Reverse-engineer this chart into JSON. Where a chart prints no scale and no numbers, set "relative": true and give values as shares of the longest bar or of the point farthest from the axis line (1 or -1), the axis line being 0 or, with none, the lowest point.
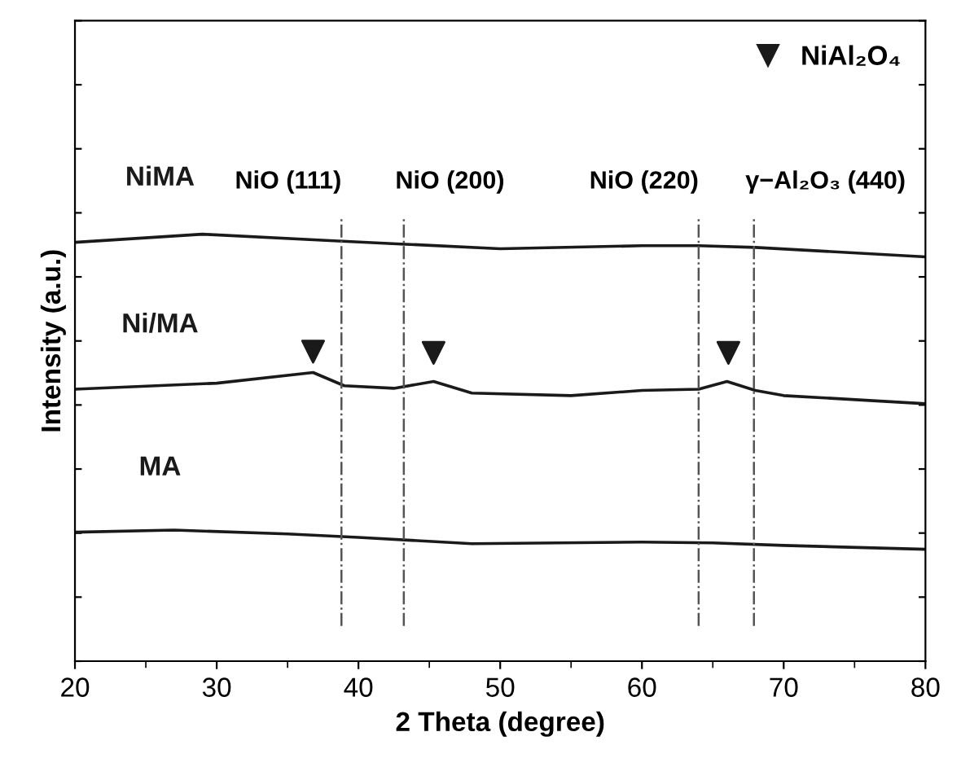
{
  "chart_data": {
    "type": "line",
    "xlabel": "2 Theta (degree)",
    "ylabel": "Intensity (a.u.)",
    "relative": true,
    "tick_labels": "x",
    "xlim": [
      20,
      80
    ],
    "xticks": [
      20,
      30,
      40,
      50,
      60,
      70,
      80
    ],
    "series": [
      {
        "name": "NiMA",
        "color": "#1a1a1a",
        "x": [
          20,
          29,
          38,
          43,
          50,
          60,
          64,
          68,
          80
        ],
        "values": [
          0.981,
          1.0,
          0.985,
          0.977,
          0.966,
          0.973,
          0.973,
          0.969,
          0.947
        ]
      },
      {
        "name": "Ni/MA",
        "color": "#1a1a1a",
        "x": [
          20,
          30,
          36.8,
          39,
          42.5,
          45.3,
          48,
          55,
          60,
          64,
          66,
          68,
          70,
          80
        ],
        "values": [
          0.637,
          0.651,
          0.676,
          0.645,
          0.639,
          0.655,
          0.628,
          0.622,
          0.634,
          0.637,
          0.655,
          0.634,
          0.622,
          0.603
        ]
      },
      {
        "name": "MA",
        "color": "#1a1a1a",
        "x": [
          20,
          27,
          35,
          40,
          48,
          60,
          65,
          70,
          80
        ],
        "values": [
          0.302,
          0.307,
          0.298,
          0.29,
          0.275,
          0.279,
          0.277,
          0.271,
          0.262
        ]
      },
      {
        "name": "NiAl₂O₄",
        "type": "scatter",
        "marker": "triangle",
        "color": "#1a1a1a",
        "x": [
          36.8,
          45.3,
          66.1
        ],
        "values": [
          0.725,
          0.722,
          0.722
        ]
      }
    ],
    "ref_lines": [
      {
        "axis": "x",
        "value": 38.8,
        "label": "NiO (111)",
        "line_style": "dashed",
        "color": "#555555"
      },
      {
        "axis": "x",
        "value": 43.2,
        "label": "NiO (200)",
        "line_style": "dashed",
        "color": "#555555"
      },
      {
        "axis": "x",
        "value": 64.0,
        "label": "NiO (220)",
        "line_style": "dashed",
        "color": "#555555"
      },
      {
        "axis": "x",
        "value": 67.9,
        "label": "γ−Al₂O₃ (440)",
        "line_style": "dashed",
        "color": "#555555"
      }
    ],
    "legend": "top right",
    "grid": false
  }
}
